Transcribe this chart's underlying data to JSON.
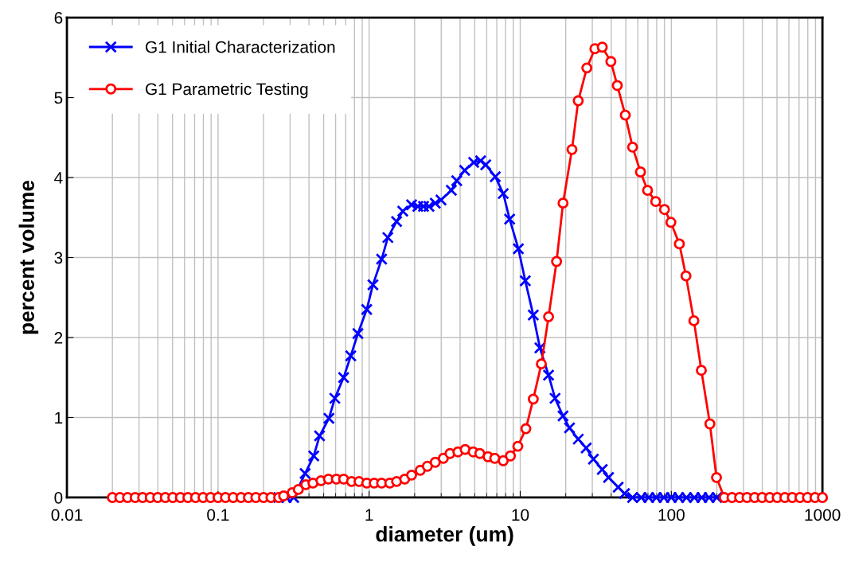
{
  "chart_data": {
    "type": "line",
    "xlabel": "diameter (um)",
    "ylabel": "percent volume",
    "log": "x",
    "xlim": [
      0.01,
      1000
    ],
    "xticks": [
      0.01,
      0.1,
      1,
      10,
      100,
      1000
    ],
    "ylim": [
      0,
      6
    ],
    "yticks": [
      0,
      1,
      2,
      3,
      4,
      5,
      6
    ],
    "grid": true,
    "legend": "top left",
    "line_style": "solid",
    "series": [
      {
        "name": "G1 Initial Characterization",
        "color": "#0000ff",
        "marker": "cross",
        "x": [
          0.252,
          0.283,
          0.317,
          0.377,
          0.43,
          0.47,
          0.542,
          0.593,
          0.678,
          0.756,
          0.843,
          0.964,
          1.06,
          1.21,
          1.33,
          1.52,
          1.67,
          1.91,
          2.1,
          2.29,
          2.49,
          2.74,
          2.99,
          3.5,
          3.8,
          4.29,
          4.92,
          5.47,
          5.91,
          6.84,
          7.72,
          8.51,
          9.72,
          10.8,
          12.2,
          13.5,
          15.4,
          17.0,
          19.2,
          21.2,
          24.2,
          27.3,
          30.5,
          34.9,
          38.4,
          44.5,
          49.0,
          55.4,
          63.2,
          70.9,
          79.6,
          89.3,
          100,
          112,
          126,
          142,
          159,
          178,
          200
        ],
        "values": [
          0,
          0,
          0,
          0.3,
          0.52,
          0.77,
          0.99,
          1.24,
          1.5,
          1.77,
          2.05,
          2.35,
          2.66,
          2.98,
          3.25,
          3.45,
          3.58,
          3.66,
          3.64,
          3.64,
          3.64,
          3.68,
          3.72,
          3.84,
          3.96,
          4.09,
          4.19,
          4.21,
          4.16,
          4.01,
          3.8,
          3.48,
          3.11,
          2.71,
          2.28,
          1.87,
          1.53,
          1.24,
          1.02,
          0.87,
          0.73,
          0.62,
          0.48,
          0.35,
          0.25,
          0.13,
          0.05,
          0,
          0,
          0,
          0,
          0,
          0,
          0,
          0,
          0,
          0,
          0,
          0
        ]
      },
      {
        "name": "G1 Parametric Testing",
        "color": "#ff0000",
        "marker": "circle",
        "x": [
          0.02,
          0.0224,
          0.0252,
          0.0283,
          0.0317,
          0.0356,
          0.0399,
          0.0448,
          0.0502,
          0.0564,
          0.0632,
          0.071,
          0.0796,
          0.0893,
          0.1,
          0.112,
          0.126,
          0.142,
          0.159,
          0.178,
          0.2,
          0.224,
          0.252,
          0.272,
          0.31,
          0.34,
          0.381,
          0.425,
          0.48,
          0.538,
          0.607,
          0.678,
          0.765,
          0.857,
          0.964,
          1.08,
          1.21,
          1.37,
          1.52,
          1.72,
          1.91,
          2.18,
          2.43,
          2.74,
          3.1,
          3.43,
          3.87,
          4.32,
          4.88,
          5.4,
          6.12,
          6.78,
          7.72,
          8.61,
          9.64,
          10.9,
          12.2,
          13.8,
          15.4,
          17.4,
          19.2,
          22.0,
          24.2,
          27.6,
          31.2,
          34.9,
          39.8,
          43.9,
          49.6,
          55.4,
          62.5,
          69.6,
          78.8,
          90.1,
          99.3,
          113,
          125,
          141,
          158,
          180,
          199,
          224,
          252,
          283,
          317,
          356,
          399,
          448,
          502,
          564,
          632,
          710,
          796,
          893,
          1000
        ],
        "values": [
          0,
          0,
          0,
          0,
          0,
          0,
          0,
          0,
          0,
          0,
          0,
          0,
          0,
          0,
          0,
          0,
          0,
          0,
          0,
          0,
          0,
          0,
          0,
          0.02,
          0.06,
          0.1,
          0.16,
          0.18,
          0.21,
          0.23,
          0.23,
          0.23,
          0.2,
          0.2,
          0.18,
          0.18,
          0.18,
          0.18,
          0.2,
          0.23,
          0.28,
          0.34,
          0.39,
          0.44,
          0.49,
          0.55,
          0.57,
          0.6,
          0.57,
          0.55,
          0.51,
          0.49,
          0.46,
          0.52,
          0.64,
          0.86,
          1.23,
          1.67,
          2.26,
          2.95,
          3.68,
          4.35,
          4.96,
          5.37,
          5.61,
          5.63,
          5.45,
          5.15,
          4.78,
          4.38,
          4.07,
          3.84,
          3.7,
          3.6,
          3.44,
          3.17,
          2.77,
          2.21,
          1.59,
          0.92,
          0.25,
          0,
          0,
          0,
          0,
          0,
          0,
          0,
          0,
          0,
          0,
          0,
          0,
          0,
          0
        ]
      }
    ]
  }
}
